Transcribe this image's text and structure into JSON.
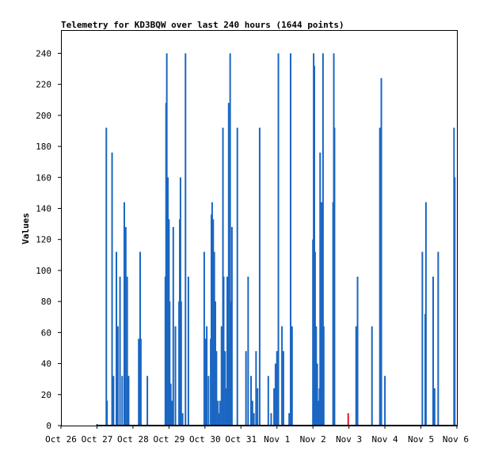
{
  "chart_data": {
    "type": "bar",
    "title": "Telemetry for KD3BQW over last 240 hours (1644 points)",
    "xlabel": "",
    "ylabel": "Values",
    "x_unit": "days since Oct 26 00:00",
    "xlim": [
      0,
      11
    ],
    "ylim": [
      0,
      255
    ],
    "x_tick_labels": [
      "Oct 26",
      "Oct 27",
      "Oct 28",
      "Oct 29",
      "Oct 30",
      "Oct 31",
      "Nov 1",
      "Nov 2",
      "Nov 3",
      "Nov 4",
      "Nov 5",
      "Nov 6"
    ],
    "y_ticks": [
      0,
      20,
      40,
      60,
      80,
      100,
      120,
      140,
      160,
      180,
      200,
      220,
      240
    ],
    "grid": false,
    "series_colors": [
      "#1a66c2",
      "#e8141a"
    ],
    "series": [
      {
        "name": "",
        "color": "#1a66c2",
        "points": [
          [
            1.0,
            1
          ],
          [
            1.26,
            192
          ],
          [
            1.28,
            16
          ],
          [
            1.42,
            176
          ],
          [
            1.46,
            32
          ],
          [
            1.54,
            112
          ],
          [
            1.58,
            64
          ],
          [
            1.64,
            96
          ],
          [
            1.7,
            32
          ],
          [
            1.76,
            144
          ],
          [
            1.8,
            128
          ],
          [
            1.84,
            96
          ],
          [
            1.88,
            32
          ],
          [
            2.16,
            56
          ],
          [
            2.2,
            112
          ],
          [
            2.22,
            56
          ],
          [
            2.4,
            32
          ],
          [
            2.9,
            96
          ],
          [
            2.92,
            208
          ],
          [
            2.94,
            240
          ],
          [
            2.97,
            160
          ],
          [
            3.0,
            133
          ],
          [
            3.02,
            80
          ],
          [
            3.05,
            27
          ],
          [
            3.08,
            16
          ],
          [
            3.12,
            128
          ],
          [
            3.18,
            64
          ],
          [
            3.28,
            80
          ],
          [
            3.3,
            133
          ],
          [
            3.32,
            160
          ],
          [
            3.34,
            80
          ],
          [
            3.38,
            8
          ],
          [
            3.46,
            240
          ],
          [
            3.54,
            96
          ],
          [
            3.98,
            112
          ],
          [
            4.02,
            56
          ],
          [
            4.05,
            64
          ],
          [
            4.1,
            32
          ],
          [
            4.16,
            56
          ],
          [
            4.18,
            136
          ],
          [
            4.2,
            144
          ],
          [
            4.23,
            133
          ],
          [
            4.26,
            112
          ],
          [
            4.29,
            80
          ],
          [
            4.32,
            48
          ],
          [
            4.36,
            16
          ],
          [
            4.4,
            8
          ],
          [
            4.42,
            16
          ],
          [
            4.46,
            64
          ],
          [
            4.5,
            192
          ],
          [
            4.52,
            96
          ],
          [
            4.56,
            48
          ],
          [
            4.58,
            24
          ],
          [
            4.62,
            96
          ],
          [
            4.66,
            208
          ],
          [
            4.69,
            56
          ],
          [
            4.7,
            240
          ],
          [
            4.72,
            80
          ],
          [
            4.75,
            128
          ],
          [
            4.9,
            192
          ],
          [
            5.14,
            48
          ],
          [
            5.2,
            96
          ],
          [
            5.28,
            32
          ],
          [
            5.32,
            16
          ],
          [
            5.36,
            8
          ],
          [
            5.42,
            48
          ],
          [
            5.46,
            24
          ],
          [
            5.52,
            192
          ],
          [
            5.76,
            32
          ],
          [
            5.84,
            8
          ],
          [
            5.92,
            24
          ],
          [
            5.96,
            40
          ],
          [
            6.0,
            48
          ],
          [
            6.04,
            240
          ],
          [
            6.14,
            64
          ],
          [
            6.18,
            48
          ],
          [
            6.34,
            8
          ],
          [
            6.38,
            240
          ],
          [
            6.42,
            64
          ],
          [
            7.0,
            120
          ],
          [
            7.02,
            240
          ],
          [
            7.04,
            232
          ],
          [
            7.06,
            112
          ],
          [
            7.09,
            64
          ],
          [
            7.12,
            40
          ],
          [
            7.14,
            16
          ],
          [
            7.18,
            24
          ],
          [
            7.2,
            176
          ],
          [
            7.22,
            120
          ],
          [
            7.24,
            144
          ],
          [
            7.28,
            240
          ],
          [
            7.3,
            64
          ],
          [
            7.56,
            144
          ],
          [
            7.58,
            240
          ],
          [
            7.6,
            192
          ],
          [
            8.2,
            64
          ],
          [
            8.24,
            96
          ],
          [
            8.64,
            64
          ],
          [
            8.86,
            192
          ],
          [
            8.9,
            224
          ],
          [
            9.0,
            32
          ],
          [
            10.04,
            112
          ],
          [
            10.12,
            72
          ],
          [
            10.14,
            144
          ],
          [
            10.34,
            96
          ],
          [
            10.38,
            24
          ],
          [
            10.48,
            112
          ],
          [
            10.92,
            192
          ],
          [
            10.94,
            160
          ]
        ]
      },
      {
        "name": "",
        "color": "#e8141a",
        "points": [
          [
            7.98,
            8
          ]
        ]
      }
    ]
  }
}
